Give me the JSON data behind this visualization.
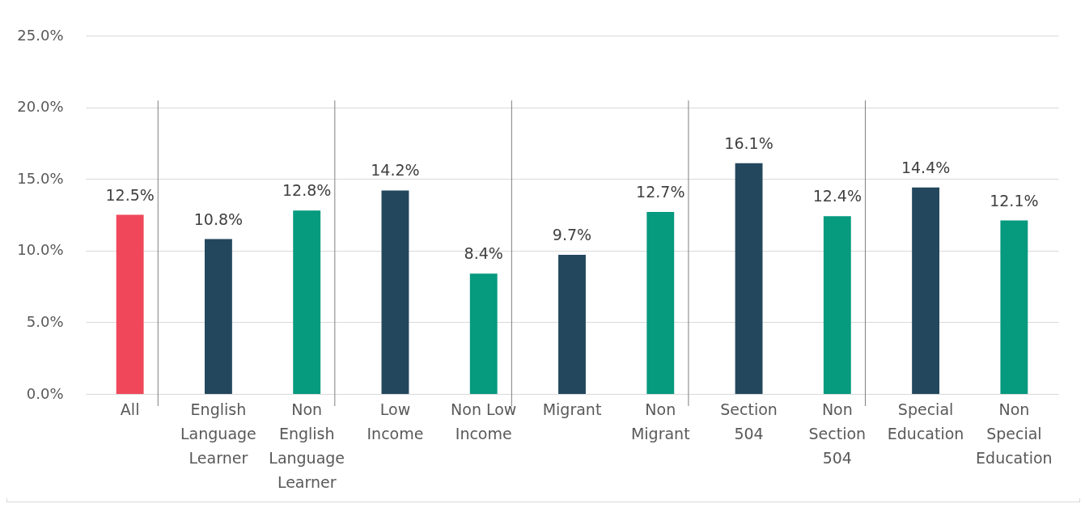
{
  "chart_data": {
    "type": "bar",
    "categories": [
      "All",
      "English Language Learner",
      "Non English Language Learner",
      "Low Income",
      "Non Low Income",
      "Migrant",
      "Non Migrant",
      "Section 504",
      "Non Section 504",
      "Special Education",
      "Non Special Education"
    ],
    "values": [
      12.5,
      10.8,
      12.8,
      14.2,
      8.4,
      9.7,
      12.7,
      16.1,
      12.4,
      14.4,
      12.1
    ],
    "value_labels": [
      "12.5%",
      "10.8%",
      "12.8%",
      "14.2%",
      "8.4%",
      "9.7%",
      "12.7%",
      "16.1%",
      "12.4%",
      "14.4%",
      "12.1%"
    ],
    "colors": [
      "#f0485a",
      "#23485e",
      "#069a7e",
      "#23485e",
      "#069a7e",
      "#23485e",
      "#069a7e",
      "#23485e",
      "#069a7e",
      "#23485e",
      "#069a7e"
    ],
    "ylim": [
      0,
      25
    ],
    "yticks": [
      {
        "value": 0,
        "label": "0.0%"
      },
      {
        "value": 5,
        "label": "5.0%"
      },
      {
        "value": 10,
        "label": "10.0%"
      },
      {
        "value": 15,
        "label": "15.0%"
      },
      {
        "value": 20,
        "label": "20.0%"
      },
      {
        "value": 25,
        "label": "25.0%"
      }
    ],
    "grid": "y"
  }
}
